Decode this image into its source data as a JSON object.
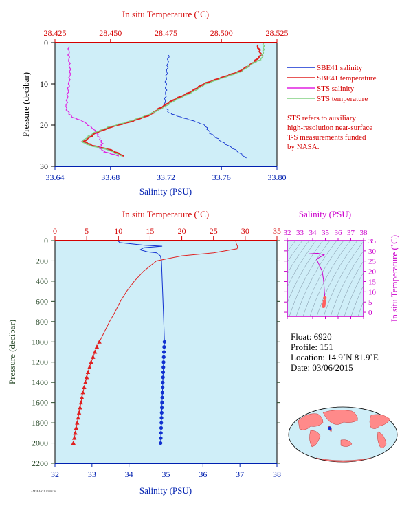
{
  "colors": {
    "plot_bg": "#cfeef8",
    "temp_axis": "#d40000",
    "sal_axis": "#0020b0",
    "pres_axis_top": "#000000",
    "pres_axis_bottom": "#2a4a2a",
    "sts_salinity": "#e020e0",
    "sts_temperature": "#80d080",
    "sbe_salinity": "#1030d0",
    "sbe_temperature": "#e02020",
    "ts_panel": "#cc00cc"
  },
  "top_panel": {
    "top_axis_label": "In situ Temperature (˚C)",
    "bottom_axis_label": "Salinity (PSU)",
    "left_axis_label": "Pressure (decibar)",
    "temp_ticks": [
      "28.425",
      "28.450",
      "28.475",
      "28.500",
      "28.525"
    ],
    "sal_ticks": [
      "33.64",
      "33.68",
      "33.72",
      "33.76",
      "33.80"
    ],
    "pres_ticks": [
      "0",
      "10",
      "20",
      "30"
    ]
  },
  "legend": {
    "items": [
      {
        "label": "SBE41 salinity",
        "color": "#1030d0"
      },
      {
        "label": "SBE41 temperature",
        "color": "#e02020"
      },
      {
        "label": "STS salinity",
        "color": "#e020e0"
      },
      {
        "label": "STS temperature",
        "color": "#80d080"
      }
    ],
    "note": [
      "STS refers to auxiliary",
      "high-resolution near-surface",
      "T-S measurements funded",
      "by NASA."
    ]
  },
  "bottom_panel": {
    "top_axis_label": "In situ Temperature (˚C)",
    "bottom_axis_label": "Salinity (PSU)",
    "left_axis_label": "Pressure (decibar)",
    "temp_ticks": [
      "0",
      "5",
      "10",
      "15",
      "20",
      "25",
      "30",
      "35"
    ],
    "sal_ticks": [
      "32",
      "33",
      "34",
      "35",
      "36",
      "37",
      "38"
    ],
    "pres_ticks": [
      "0",
      "200",
      "400",
      "600",
      "800",
      "1000",
      "1200",
      "1400",
      "1600",
      "1800",
      "2000",
      "2200"
    ]
  },
  "ts_panel": {
    "top_axis_label": "Salinity (PSU)",
    "right_axis_label": "In situ Temperature (˚C)",
    "sal_ticks": [
      "32",
      "33",
      "34",
      "35",
      "36",
      "37",
      "38"
    ],
    "temp_ticks": [
      "0",
      "5",
      "10",
      "15",
      "20",
      "25",
      "30",
      "35"
    ]
  },
  "info": {
    "float": "Float:  6920",
    "profile": "Profile:  151",
    "location": "Location:  14.9˚N  81.9˚E",
    "date": "Date:  03/06/2015"
  },
  "chart_data": [
    {
      "type": "line",
      "panel": "near-surface profile",
      "ylabel": "Pressure (decibar)",
      "xlabel_bottom": "Salinity (PSU)",
      "xlabel_top": "In situ Temperature (˚C)",
      "ylim": [
        30,
        0
      ],
      "xlim_salinity": [
        33.64,
        33.8
      ],
      "xlim_temperature": [
        28.425,
        28.525
      ],
      "series": [
        {
          "name": "SBE41 salinity",
          "axis": "salinity",
          "points": [
            [
              33.722,
              3
            ],
            [
              33.721,
              6
            ],
            [
              33.72,
              9
            ],
            [
              33.72,
              12
            ],
            [
              33.719,
              15
            ],
            [
              33.722,
              17
            ],
            [
              33.73,
              18
            ],
            [
              33.74,
              19
            ],
            [
              33.748,
              20
            ],
            [
              33.752,
              22
            ],
            [
              33.76,
              24
            ],
            [
              33.77,
              26
            ],
            [
              33.778,
              28
            ]
          ]
        },
        {
          "name": "SBE41 temperature",
          "axis": "temperature",
          "points": [
            [
              28.516,
              0.5
            ],
            [
              28.518,
              3
            ],
            [
              28.514,
              5
            ],
            [
              28.508,
              7
            ],
            [
              28.5,
              8.5
            ],
            [
              28.492,
              10
            ],
            [
              28.486,
              12
            ],
            [
              28.478,
              14
            ],
            [
              28.472,
              16
            ],
            [
              28.468,
              17.5
            ],
            [
              28.46,
              19
            ],
            [
              28.45,
              20.5
            ],
            [
              28.443,
              22
            ],
            [
              28.438,
              24
            ],
            [
              28.442,
              25
            ],
            [
              28.45,
              26
            ],
            [
              28.456,
              27.5
            ]
          ]
        },
        {
          "name": "STS salinity",
          "axis": "salinity",
          "points": [
            [
              33.65,
              1
            ],
            [
              33.65,
              4
            ],
            [
              33.651,
              7
            ],
            [
              33.65,
              10
            ],
            [
              33.649,
              13
            ],
            [
              33.648,
              16
            ],
            [
              33.652,
              18
            ],
            [
              33.66,
              19
            ],
            [
              33.668,
              21
            ],
            [
              33.672,
              23
            ],
            [
              33.674,
              24.5
            ],
            [
              33.672,
              25.5
            ],
            [
              33.676,
              26.5
            ],
            [
              33.686,
              27.5
            ]
          ]
        },
        {
          "name": "STS temperature",
          "axis": "temperature",
          "points": [
            [
              28.519,
              0.2
            ],
            [
              28.519,
              2
            ],
            [
              28.518,
              4
            ],
            [
              28.514,
              5
            ],
            [
              28.509,
              7
            ],
            [
              28.501,
              8.5
            ],
            [
              28.493,
              10
            ],
            [
              28.487,
              12
            ],
            [
              28.479,
              14
            ],
            [
              28.473,
              16
            ],
            [
              28.467,
              17.5
            ],
            [
              28.459,
              19
            ],
            [
              28.449,
              20.5
            ],
            [
              28.442,
              22
            ],
            [
              28.437,
              24
            ],
            [
              28.441,
              25
            ],
            [
              28.449,
              26
            ],
            [
              28.455,
              27.5
            ]
          ]
        }
      ]
    },
    {
      "type": "line",
      "panel": "full profile",
      "ylabel": "Pressure (decibar)",
      "xlabel_bottom": "Salinity (PSU)",
      "xlabel_top": "In situ Temperature (˚C)",
      "ylim": [
        2200,
        0
      ],
      "xlim_salinity": [
        32,
        38
      ],
      "xlim_temperature": [
        0,
        35
      ],
      "series": [
        {
          "name": "salinity",
          "axis": "salinity",
          "points": [
            [
              33.7,
              0
            ],
            [
              33.75,
              20
            ],
            [
              34.4,
              45
            ],
            [
              34.9,
              55
            ],
            [
              34.4,
              70
            ],
            [
              34.3,
              90
            ],
            [
              34.5,
              110
            ],
            [
              34.75,
              120
            ],
            [
              34.85,
              150
            ],
            [
              34.88,
              200
            ],
            [
              34.9,
              400
            ],
            [
              34.92,
              600
            ],
            [
              34.94,
              800
            ],
            [
              34.96,
              1000
            ]
          ],
          "markers": [
            [
              34.96,
              1000
            ],
            [
              34.95,
              1050
            ],
            [
              34.945,
              1100
            ],
            [
              34.94,
              1150
            ],
            [
              34.935,
              1200
            ],
            [
              34.93,
              1250
            ],
            [
              34.925,
              1300
            ],
            [
              34.92,
              1350
            ],
            [
              34.915,
              1400
            ],
            [
              34.91,
              1450
            ],
            [
              34.905,
              1500
            ],
            [
              34.9,
              1550
            ],
            [
              34.895,
              1600
            ],
            [
              34.89,
              1650
            ],
            [
              34.885,
              1700
            ],
            [
              34.88,
              1750
            ],
            [
              34.875,
              1800
            ],
            [
              34.87,
              1850
            ],
            [
              34.865,
              1900
            ],
            [
              34.86,
              1950
            ],
            [
              34.855,
              2000
            ]
          ]
        },
        {
          "name": "temperature",
          "axis": "temperature",
          "points": [
            [
              28.5,
              0
            ],
            [
              28.6,
              30
            ],
            [
              28.8,
              60
            ],
            [
              28.7,
              80
            ],
            [
              25,
              120
            ],
            [
              20,
              150
            ],
            [
              16,
              200
            ],
            [
              14,
              300
            ],
            [
              12.5,
              400
            ],
            [
              11.3,
              500
            ],
            [
              10.3,
              600
            ],
            [
              9.5,
              700
            ],
            [
              8.6,
              800
            ],
            [
              7.8,
              900
            ],
            [
              7.0,
              1000
            ]
          ],
          "markers": [
            [
              7.0,
              1000
            ],
            [
              6.6,
              1050
            ],
            [
              6.3,
              1100
            ],
            [
              6.0,
              1150
            ],
            [
              5.7,
              1200
            ],
            [
              5.45,
              1250
            ],
            [
              5.2,
              1300
            ],
            [
              5.0,
              1350
            ],
            [
              4.8,
              1400
            ],
            [
              4.6,
              1450
            ],
            [
              4.4,
              1500
            ],
            [
              4.25,
              1550
            ],
            [
              4.1,
              1600
            ],
            [
              3.95,
              1650
            ],
            [
              3.8,
              1700
            ],
            [
              3.65,
              1750
            ],
            [
              3.5,
              1800
            ],
            [
              3.35,
              1850
            ],
            [
              3.2,
              1900
            ],
            [
              3.05,
              1950
            ],
            [
              2.9,
              2000
            ]
          ]
        }
      ]
    },
    {
      "type": "scatter",
      "panel": "T-S diagram",
      "xlabel": "Salinity (PSU)",
      "ylabel": "In situ Temperature (˚C)",
      "xlim": [
        32,
        38
      ],
      "ylim": [
        -2,
        35
      ],
      "series": [
        {
          "name": "T-S",
          "points": [
            [
              33.7,
              28.5
            ],
            [
              34.4,
              28.8
            ],
            [
              34.9,
              28.0
            ],
            [
              34.3,
              26
            ],
            [
              34.75,
              20
            ],
            [
              34.85,
              16
            ],
            [
              34.88,
              14
            ],
            [
              34.9,
              12.5
            ],
            [
              34.92,
              10.3
            ],
            [
              34.94,
              8.6
            ],
            [
              34.96,
              7.0
            ],
            [
              34.93,
              5.4
            ],
            [
              34.9,
              4.4
            ],
            [
              34.88,
              3.6
            ],
            [
              34.855,
              2.9
            ]
          ]
        }
      ]
    }
  ]
}
